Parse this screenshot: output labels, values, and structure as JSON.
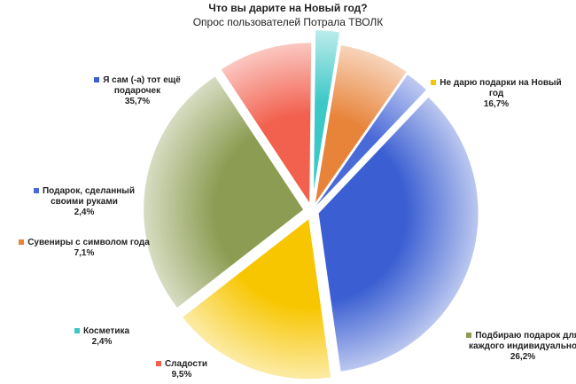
{
  "chart_data": {
    "type": "pie",
    "title": "Что вы дарите на Новый год?",
    "subtitle": "Опрос пользователей Потрала ТВОЛК",
    "categories": [
      "Я сам (-а) тот ещё подарочек",
      "Не дарю подарки на Новый год",
      "Подбираю подарок для каждого индивидуально",
      "Сладости",
      "Косметика",
      "Сувениры с символом года",
      "Подарок, сделанный своими руками"
    ],
    "values": [
      35.7,
      16.7,
      26.2,
      9.5,
      2.4,
      7.1,
      2.4
    ],
    "value_labels": [
      "35,7%",
      "16,7%",
      "26,2%",
      "9,5%",
      "2,4%",
      "7,1%",
      "2,4%"
    ],
    "colors": [
      "#3b5fd2",
      "#f7c600",
      "#8c9c52",
      "#f2604e",
      "#3cc8c6",
      "#e8843a",
      "#4a6ad8"
    ]
  }
}
